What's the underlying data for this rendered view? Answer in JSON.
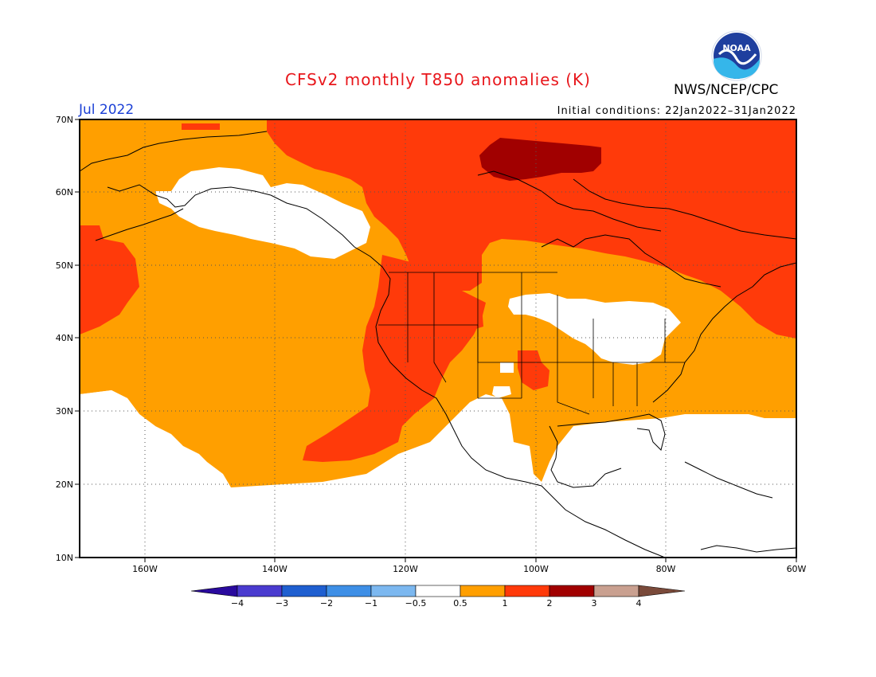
{
  "header": {
    "title": "CFSv2 monthly T850 anomalies (K)",
    "org": "NWS/NCEP/CPC",
    "month": "Jul 2022",
    "initial_conditions": "Initial conditions: 22Jan2022–31Jan2022",
    "logo_text": "NOAA"
  },
  "axes": {
    "lat_labels": [
      "70N",
      "60N",
      "50N",
      "40N",
      "30N",
      "20N",
      "10N"
    ],
    "lon_labels": [
      "160W",
      "140W",
      "120W",
      "100W",
      "80W",
      "60W"
    ]
  },
  "colorbar": {
    "levels": [
      "-4",
      "-3",
      "-2",
      "-1",
      "-0.5",
      "0.5",
      "1",
      "2",
      "3",
      "4"
    ],
    "colors": [
      "#2a0a9e",
      "#4a3bcf",
      "#1f5fd0",
      "#3e8fe6",
      "#7cb8f0",
      "#ffffff",
      "#ff9f00",
      "#ff3a0a",
      "#a10000",
      "#c9a090",
      "#7a4a3a"
    ]
  },
  "legend_colors": {
    "anom_0_5_to_1": "#ff9f00",
    "anom_1_to_2": "#ff3a0a",
    "anom_2_to_3": "#a10000",
    "neutral": "#ffffff"
  }
}
